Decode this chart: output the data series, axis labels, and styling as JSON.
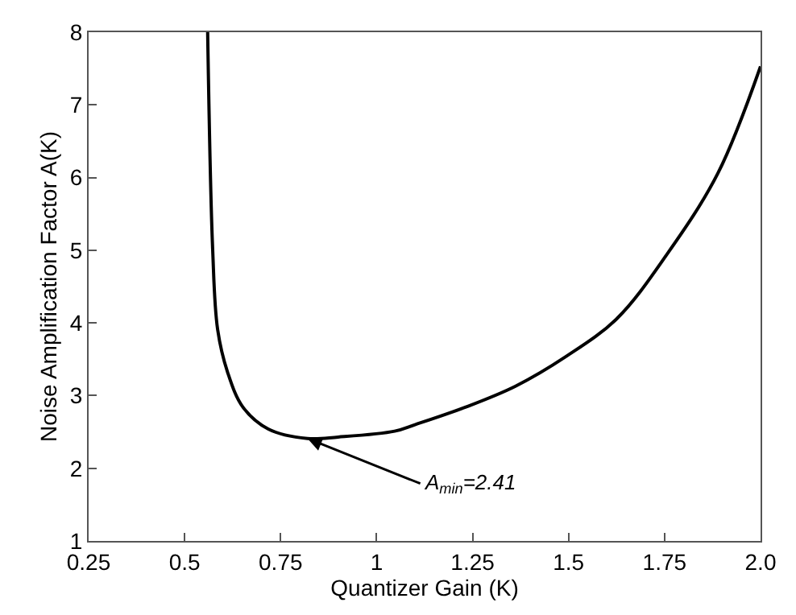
{
  "chart_data": {
    "type": "line",
    "xlabel": "Quantizer Gain (K)",
    "ylabel": "Noise Amplification Factor A(K)",
    "series": [
      {
        "color": "#000000",
        "x": [
          0.56,
          0.573,
          0.586,
          0.612,
          0.652,
          0.718,
          0.82,
          0.9,
          1.047,
          1.1,
          1.231,
          1.362,
          1.494,
          1.626,
          1.757,
          1.889,
          2.0
        ],
        "values": [
          8,
          5.02,
          3.91,
          3.32,
          2.84,
          2.54,
          2.41,
          2.43,
          2.51,
          2.6,
          2.84,
          3.13,
          3.54,
          4.06,
          4.95,
          6.06,
          7.53
        ]
      }
    ],
    "annotations": [
      {
        "text": "A$_{min}$=2.41",
        "x": 0.82,
        "y": 2.41
      }
    ],
    "xlim": [
      0.25,
      2.0
    ],
    "xticks": [
      0.25,
      0.5,
      0.75,
      1,
      1.25,
      1.5,
      1.75,
      {
        "value": 2.0,
        "label": "2.0"
      }
    ],
    "ylim": [
      1,
      8
    ],
    "yticks": [
      1,
      2,
      3,
      4,
      5,
      6,
      7,
      8
    ],
    "legend": false,
    "marker": "none",
    "line_style": "solid"
  }
}
